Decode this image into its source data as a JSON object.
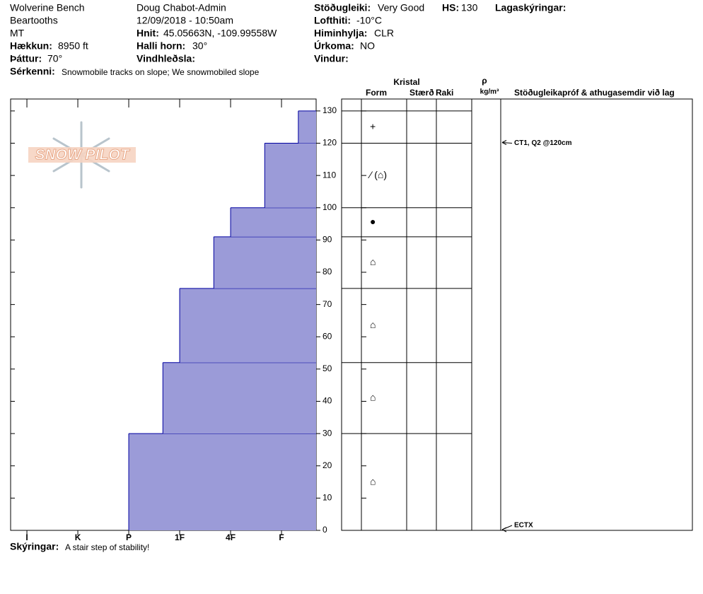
{
  "header": {
    "location": "Wolverine Bench",
    "range": "Beartooths",
    "state": "MT",
    "elevation_label": "Hækkun:",
    "elevation": "8950 ft",
    "aspect_label": "Þáttur:",
    "aspect": "70°",
    "observer": "Doug Chabot-Admin",
    "datetime": "12/09/2018 - 10:50am",
    "coords_label": "Hnit:",
    "coords": "45.05663N, -109.99558W",
    "slope_label": "Halli horn:",
    "slope": "30°",
    "wind_loading_label": "Vindhleðsla:",
    "stability_label": "Stöðugleiki:",
    "stability": "Very Good",
    "hs_label": "HS:",
    "hs": "130",
    "air_temp_label": "Lofthiti:",
    "air_temp": "-10°C",
    "sky_label": "Himinhylja:",
    "sky": "CLR",
    "precip_label": "Úrkoma:",
    "precip": "NO",
    "wind_label": "Vindur:",
    "layer_notes_label": "Lagaskýringar:",
    "features_label": "Sérkenni:",
    "features": "Snowmobile tracks on slope; We snowmobiled slope"
  },
  "logo": "SNOW PILOT",
  "chart_data": {
    "type": "snow-profile",
    "xlim": [
      6.32,
      0.32
    ],
    "xticks": [
      {
        "value": 6,
        "label": "I"
      },
      {
        "value": 5,
        "label": "K"
      },
      {
        "value": 4,
        "label": "P"
      },
      {
        "value": 3,
        "label": "1F"
      },
      {
        "value": 2,
        "label": "4F"
      },
      {
        "value": 1,
        "label": "F"
      }
    ],
    "ylim": [
      0,
      133.7
    ],
    "yticks": [
      0,
      10,
      20,
      30,
      40,
      50,
      60,
      70,
      80,
      90,
      100,
      110,
      120,
      130
    ],
    "color": "#9b9bd8",
    "edge_color": "#0000a0",
    "layers": [
      {
        "bottom": 0,
        "top": 30,
        "hardness": 4,
        "form": "⌂"
      },
      {
        "bottom": 30,
        "top": 52,
        "hardness": 3.33,
        "form": "⌂"
      },
      {
        "bottom": 52,
        "top": 75,
        "hardness": 3,
        "form": "⌂"
      },
      {
        "bottom": 75,
        "top": 91,
        "hardness": 2.33,
        "form": "⌂"
      },
      {
        "bottom": 91,
        "top": 100,
        "hardness": 2,
        "form": "●"
      },
      {
        "bottom": 100,
        "top": 120,
        "hardness": 1.33,
        "form": "⁄ (⌂)"
      },
      {
        "bottom": 120,
        "top": 130,
        "hardness": 0.67,
        "form": "+"
      }
    ],
    "columns": {
      "crystal": "Kristal",
      "form": "Form",
      "size": "Stærð",
      "moisture": "Raki",
      "density": "ρ",
      "density_unit": "kg/m³",
      "tests": "Stöðugleikapróf & athugasemdir við lag"
    },
    "tests": [
      {
        "depth": 120,
        "label": "CT1, Q2 @120cm"
      },
      {
        "depth": 0,
        "label": "ECTX"
      }
    ]
  },
  "footer": {
    "notes_label": "Skýringar:",
    "notes": "A stair step of stability!"
  }
}
